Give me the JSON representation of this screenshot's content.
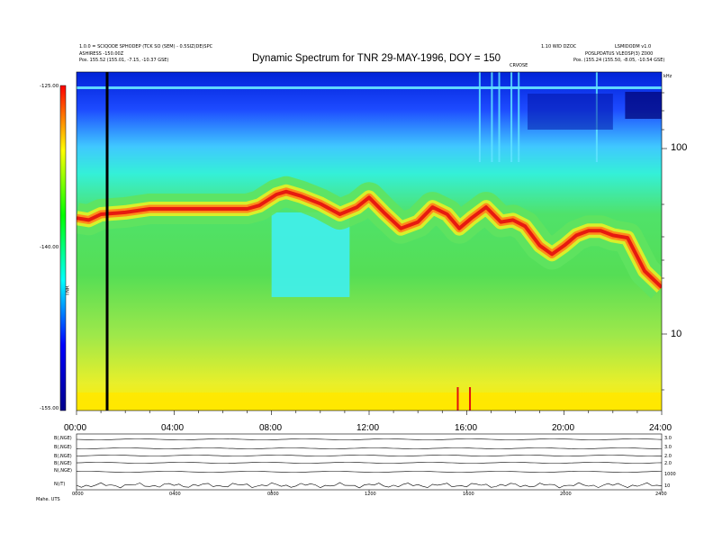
{
  "header": {
    "left_line1": "1.0.0 = SCIQODE SPHODEP (TCK SO (SEM) - 0.5SIZ(DE)SPC",
    "left_line2": "ASHIRESS -150.00Z",
    "left_line3": "Pos.    155.52 (155.01, -7.15, -10.37 GSE)",
    "right_line1": "1.10 WID DZOC",
    "right_line2": "LSMIDODM v1.0",
    "right_line3": "POSLPDATUS VLEOSP(3) Z000",
    "right_line4": "Pos.    (155.24 (155.50, -8.05, -10.54 GSE)",
    "marker": "CRVOSE"
  },
  "chart_data": {
    "type": "heatmap",
    "title": "Dynamic Spectrum for TNR 29-MAY-1996, DOY = 150",
    "x_tick_labels": [
      "00:00",
      "04:00",
      "08:00",
      "12:00",
      "16:00",
      "20:00",
      "24:00"
    ],
    "x_ticks_hours": [
      0,
      4,
      8,
      12,
      16,
      20,
      24
    ],
    "xlim_hours": [
      0,
      24
    ],
    "y_axis_label": "kHz",
    "y_ticks": [
      10,
      100
    ],
    "ylim_khz": [
      4,
      250
    ],
    "y_scale": "log",
    "colorbar": {
      "label": "TNR",
      "tick_labels": [
        "-125.00",
        "-140.00",
        "-155.00"
      ],
      "range": [
        -155,
        -125
      ],
      "colors": [
        "#00008b",
        "#0000ff",
        "#00ffff",
        "#00ff00",
        "#ffff00",
        "#ff0000"
      ]
    },
    "plasma_line_khz": [
      [
        0,
        42
      ],
      [
        0.5,
        41
      ],
      [
        1,
        44
      ],
      [
        2,
        45
      ],
      [
        3,
        47
      ],
      [
        4,
        47
      ],
      [
        5,
        47
      ],
      [
        6,
        47
      ],
      [
        7,
        47
      ],
      [
        7.5,
        49
      ],
      [
        8.2,
        56
      ],
      [
        8.6,
        58
      ],
      [
        9.2,
        55
      ],
      [
        10,
        50
      ],
      [
        10.8,
        44
      ],
      [
        11.5,
        48
      ],
      [
        12,
        54
      ],
      [
        12.6,
        45
      ],
      [
        13.3,
        37
      ],
      [
        14,
        40
      ],
      [
        14.6,
        48
      ],
      [
        15.2,
        44
      ],
      [
        15.7,
        37
      ],
      [
        16.2,
        42
      ],
      [
        16.8,
        48
      ],
      [
        17.4,
        40
      ],
      [
        17.9,
        41
      ],
      [
        18.4,
        38
      ],
      [
        19,
        30
      ],
      [
        19.5,
        27
      ],
      [
        20,
        30
      ],
      [
        20.5,
        34
      ],
      [
        21,
        36
      ],
      [
        21.5,
        36
      ],
      [
        22,
        34
      ],
      [
        22.6,
        33
      ],
      [
        23.3,
        22
      ],
      [
        24,
        18
      ]
    ],
    "cursor_hour": 1.2,
    "intensity_spikes_hours": [
      15.6,
      16.1
    ]
  },
  "lower_panel": {
    "row_labels": [
      "B(,NGE)",
      "B(,NGE)",
      "B(,NGE)",
      "B(,NGE)",
      "N(,NGE)",
      "N(/T)"
    ],
    "right_labels": [
      "3.0",
      "3.0",
      "2.0",
      "2.0",
      "1000",
      "10"
    ],
    "x_tick_labels": [
      "0000",
      "0400",
      "0800",
      "1200",
      "1600",
      "2000",
      "2400"
    ],
    "footer_label": "Mahe. UTS"
  }
}
